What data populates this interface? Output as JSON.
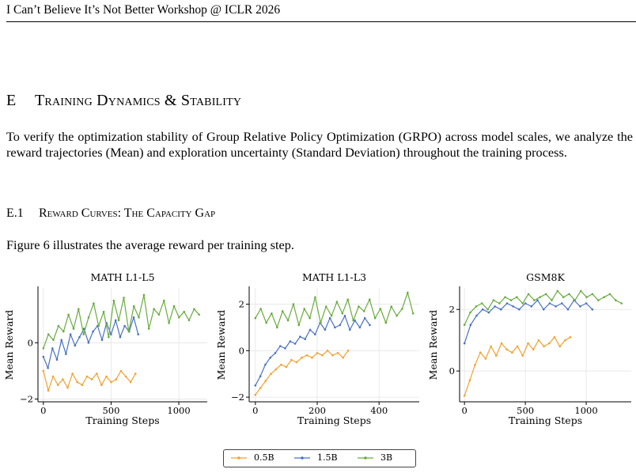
{
  "header": {
    "running_head": "I Can’t Believe It’s Not Better Workshop @ ICLR 2026"
  },
  "section": {
    "number": "E",
    "title": "Training Dynamics & Stability",
    "intro": "To verify the optimization stability of Group Relative Policy Optimization (GRPO) across model scales, we analyze the reward trajectories (Mean) and exploration uncertainty (Standard Deviation) throughout the training process."
  },
  "subsection": {
    "number": "E.1",
    "title": "Reward Curves: The Capacity Gap",
    "text": "Figure 6 illustrates the average reward per training step."
  },
  "colors": {
    "0.5B": "#f0a232",
    "1.5B": "#4a72c4",
    "3B": "#6aac3f"
  },
  "legend": [
    {
      "label": "0.5B",
      "color": "#f0a232"
    },
    {
      "label": "1.5B",
      "color": "#4a72c4"
    },
    {
      "label": "3B",
      "color": "#6aac3f"
    }
  ],
  "chart_data": [
    {
      "type": "line",
      "title": "MATH L1-L5",
      "xlabel": "Training Steps",
      "ylabel": "Mean Reward",
      "xlim": [
        -40,
        1210
      ],
      "ylim": [
        -2.1,
        1.95
      ],
      "xticks": [
        0,
        500,
        1000
      ],
      "yticks": [
        -2,
        0
      ],
      "grid": true,
      "series": [
        {
          "name": "0.5B",
          "x_end": 680,
          "values": [
            -1.0,
            -1.7,
            -1.2,
            -1.5,
            -1.3,
            -1.6,
            -1.1,
            -1.4,
            -1.5,
            -1.2,
            -1.3,
            -1.1,
            -1.5,
            -1.2,
            -1.4,
            -1.3,
            -1.0,
            -1.2,
            -1.4,
            -1.1
          ]
        },
        {
          "name": "1.5B",
          "x_end": 700,
          "values": [
            -0.5,
            -0.9,
            -0.2,
            -0.6,
            0.1,
            -0.4,
            0.3,
            -0.1,
            0.2,
            0.5,
            0.0,
            0.4,
            0.6,
            0.1,
            0.7,
            0.3,
            0.8,
            0.2,
            0.6,
            0.4,
            0.9,
            0.3
          ]
        },
        {
          "name": "3B",
          "x_end": 1150,
          "values": [
            -0.2,
            0.3,
            0.1,
            0.6,
            0.4,
            1.0,
            0.5,
            1.2,
            0.3,
            0.9,
            1.4,
            0.6,
            1.1,
            0.2,
            1.5,
            0.8,
            1.6,
            0.4,
            1.3,
            0.9,
            1.7,
            0.5,
            1.2,
            1.0,
            1.5,
            0.7,
            1.3,
            0.9,
            1.1,
            0.8,
            1.2,
            1.0
          ]
        }
      ]
    },
    {
      "type": "line",
      "title": "MATH L1-L3",
      "xlabel": "Training Steps",
      "ylabel": "Mean Reward",
      "xlim": [
        -20,
        530
      ],
      "ylim": [
        -2.2,
        2.7
      ],
      "xticks": [
        0,
        200,
        400
      ],
      "yticks": [
        -2,
        0,
        2
      ],
      "grid": true,
      "series": [
        {
          "name": "0.5B",
          "x_end": 300,
          "values": [
            -1.9,
            -1.6,
            -1.3,
            -1.0,
            -0.8,
            -0.6,
            -0.7,
            -0.4,
            -0.5,
            -0.3,
            -0.2,
            -0.3,
            -0.1,
            -0.2,
            0.0,
            -0.2,
            -0.1,
            -0.3,
            0.0
          ]
        },
        {
          "name": "1.5B",
          "x_end": 370,
          "values": [
            -1.5,
            -1.1,
            -0.6,
            -0.3,
            -0.1,
            0.2,
            0.1,
            0.4,
            0.3,
            0.6,
            0.5,
            0.9,
            0.7,
            1.2,
            0.9,
            1.4,
            1.0,
            1.1,
            1.5,
            0.9,
            1.3,
            1.0,
            1.4,
            1.1
          ]
        },
        {
          "name": "3B",
          "x_end": 510,
          "values": [
            1.4,
            1.8,
            1.2,
            1.6,
            1.0,
            1.7,
            1.3,
            2.0,
            1.1,
            1.8,
            1.4,
            2.3,
            1.2,
            1.9,
            1.5,
            2.1,
            1.6,
            2.2,
            1.3,
            1.9,
            1.7,
            2.2,
            1.4,
            1.8,
            1.2,
            1.9,
            1.5,
            1.8,
            2.5,
            1.6
          ]
        }
      ]
    },
    {
      "type": "line",
      "title": "GSM8K",
      "xlabel": "Training Steps",
      "ylabel": "Mean Reward",
      "xlim": [
        -40,
        1370
      ],
      "ylim": [
        -1.0,
        2.7
      ],
      "xticks": [
        0,
        500,
        1000
      ],
      "yticks": [
        0,
        2
      ],
      "grid": true,
      "series": [
        {
          "name": "0.5B",
          "x_end": 870,
          "values": [
            -0.8,
            -0.3,
            0.2,
            0.6,
            0.4,
            0.8,
            0.5,
            0.9,
            0.7,
            0.6,
            0.8,
            0.5,
            0.9,
            0.7,
            1.0,
            0.8,
            0.9,
            1.1,
            0.8,
            1.0,
            1.1
          ]
        },
        {
          "name": "1.5B",
          "x_end": 1050,
          "values": [
            0.9,
            1.5,
            1.8,
            2.0,
            1.9,
            2.1,
            2.0,
            2.2,
            2.1,
            2.0,
            2.2,
            2.1,
            2.3,
            2.0,
            2.2,
            2.1,
            2.2,
            2.0,
            2.3,
            2.1,
            2.2,
            2.0
          ]
        },
        {
          "name": "3B",
          "x_end": 1290,
          "values": [
            1.5,
            1.9,
            2.1,
            2.2,
            2.0,
            2.3,
            2.2,
            2.4,
            2.3,
            2.4,
            2.2,
            2.5,
            2.3,
            2.4,
            2.5,
            2.3,
            2.6,
            2.4,
            2.5,
            2.3,
            2.6,
            2.4,
            2.5,
            2.3,
            2.4,
            2.5,
            2.3,
            2.2
          ]
        }
      ]
    }
  ]
}
